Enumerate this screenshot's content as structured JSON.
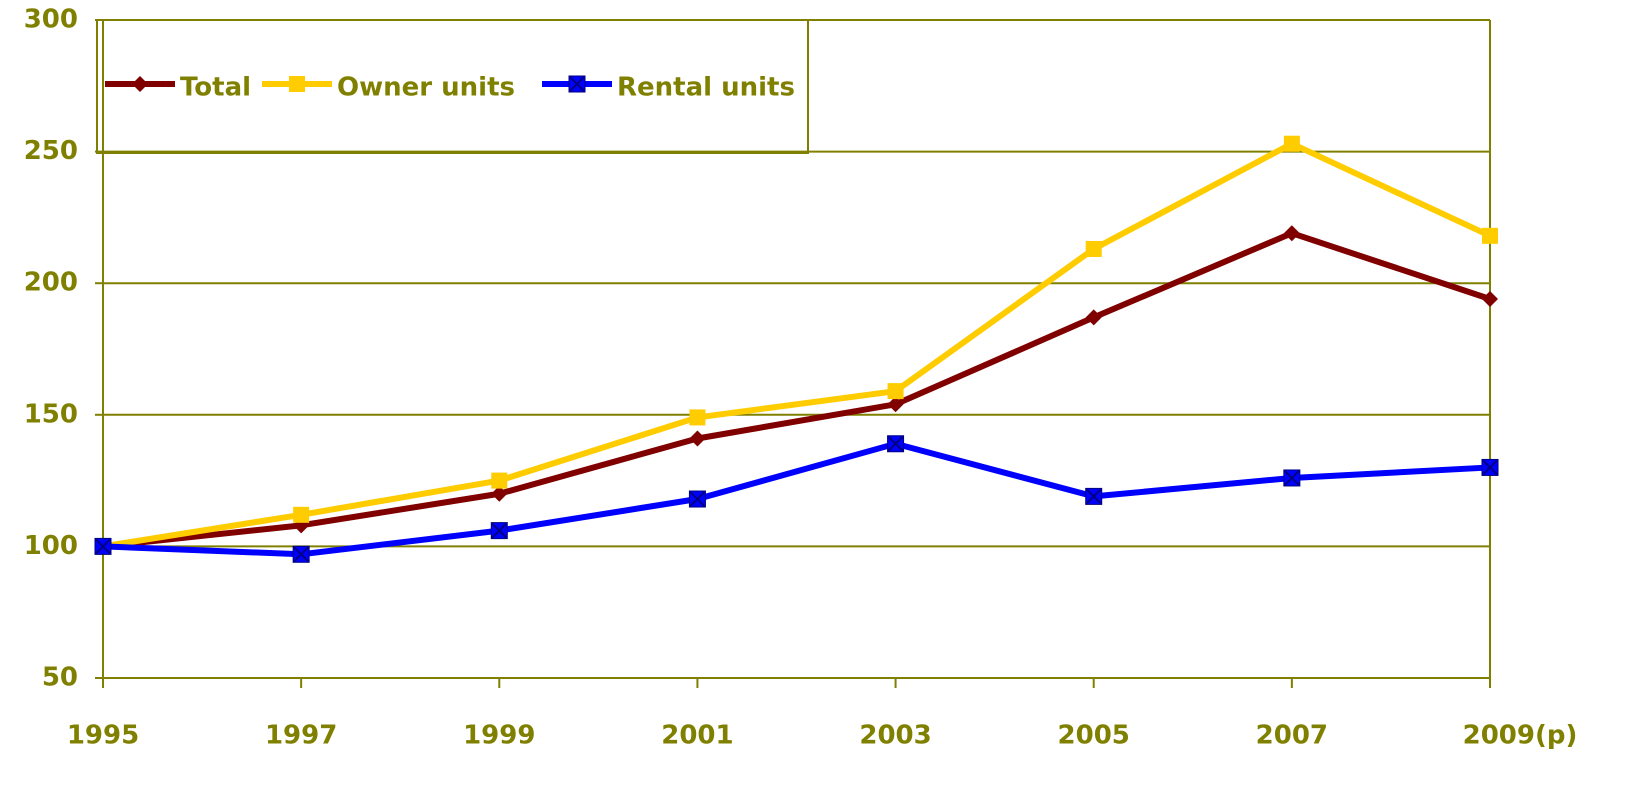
{
  "chart_data": {
    "type": "line",
    "categories": [
      "1995",
      "1997",
      "1999",
      "2001",
      "2003",
      "2005",
      "2007",
      "2009(p)"
    ],
    "series": [
      {
        "name": "Total",
        "color": "#800000",
        "marker": "diamond",
        "values": [
          100,
          108,
          120,
          141,
          154,
          187,
          219,
          194
        ]
      },
      {
        "name": "Owner units",
        "color": "#ffcc00",
        "marker": "square",
        "values": [
          100,
          112,
          125,
          149,
          159,
          213,
          253,
          218
        ]
      },
      {
        "name": "Rental units",
        "color": "#0000ff",
        "marker": "x-square",
        "values": [
          100,
          97,
          106,
          118,
          139,
          119,
          126,
          130
        ]
      }
    ],
    "ylim": [
      50,
      300
    ],
    "yticks": [
      50,
      100,
      150,
      200,
      250,
      300
    ],
    "grid": true,
    "legend": "top-left"
  }
}
